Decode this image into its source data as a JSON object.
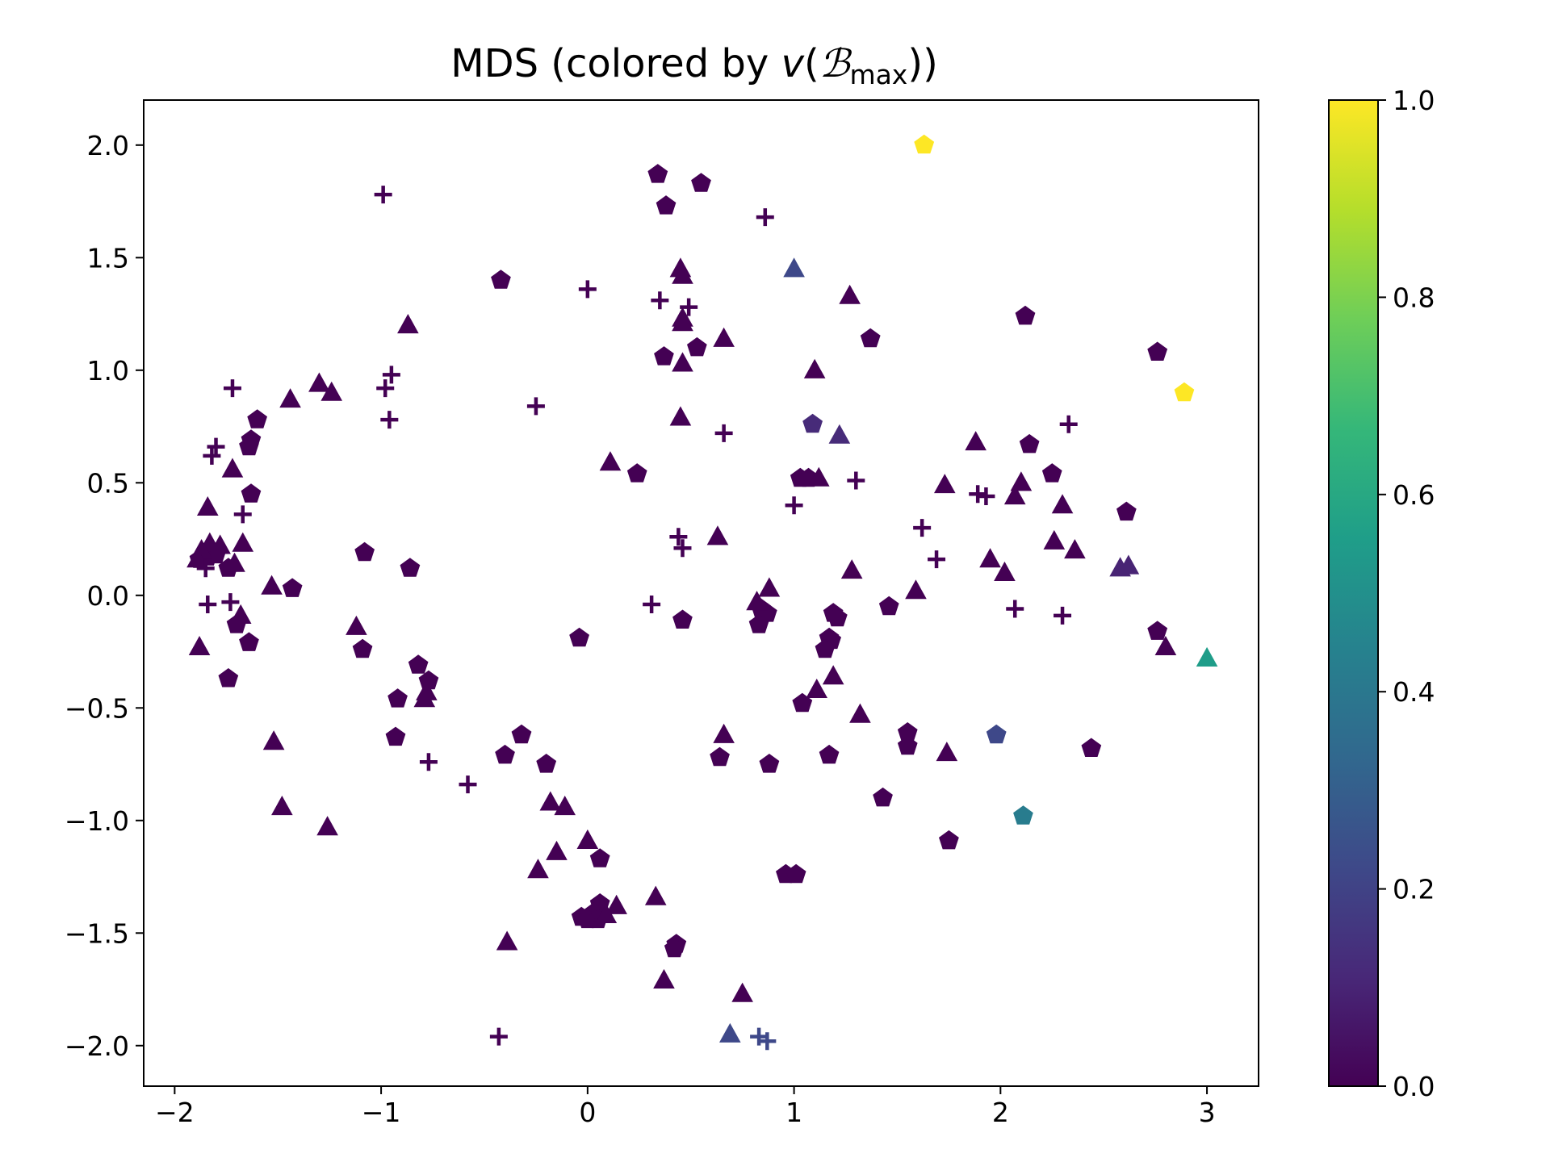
{
  "chart_data": {
    "type": "scatter",
    "title": {
      "prefix": "MDS (colored by ",
      "v": "v",
      "open": "(",
      "B": "ℬ",
      "sub": "max",
      "close": "))"
    },
    "xlabel": "",
    "ylabel": "",
    "xlim": [
      -2.15,
      3.25
    ],
    "ylim": [
      -2.18,
      2.2
    ],
    "x_ticks": [
      -2,
      -1,
      0,
      1,
      2,
      3
    ],
    "x_tick_labels": [
      "−2",
      "−1",
      "0",
      "1",
      "2",
      "3"
    ],
    "y_ticks": [
      -2.0,
      -1.5,
      -1.0,
      -0.5,
      0.0,
      0.5,
      1.0,
      1.5,
      2.0
    ],
    "y_tick_labels": [
      "−2.0",
      "−1.5",
      "−1.0",
      "−0.5",
      "0.0",
      "0.5",
      "1.0",
      "1.5",
      "2.0"
    ],
    "grid": false,
    "colorbar": {
      "colormap": "viridis",
      "range": [
        0.0,
        1.0
      ],
      "ticks": [
        0.0,
        0.2,
        0.4,
        0.6,
        0.8,
        1.0
      ],
      "tick_labels": [
        "0.0",
        "0.2",
        "0.4",
        "0.6",
        "0.8",
        "1.0"
      ],
      "stops": [
        "#440154",
        "#482878",
        "#3e4989",
        "#31688e",
        "#26828e",
        "#1f9e89",
        "#35b779",
        "#6ece58",
        "#b5de2b",
        "#fde725"
      ]
    },
    "points": [
      {
        "x": 1.63,
        "y": 2.0,
        "marker": "pentagon",
        "c": 1.0
      },
      {
        "x": 0.34,
        "y": 1.87,
        "marker": "pentagon",
        "c": 0.0
      },
      {
        "x": 0.55,
        "y": 1.83,
        "marker": "pentagon",
        "c": 0.0
      },
      {
        "x": 0.38,
        "y": 1.73,
        "marker": "pentagon",
        "c": 0.0
      },
      {
        "x": -0.42,
        "y": 1.4,
        "marker": "pentagon",
        "c": 0.0
      },
      {
        "x": 2.12,
        "y": 1.24,
        "marker": "pentagon",
        "c": 0.0
      },
      {
        "x": 1.37,
        "y": 1.14,
        "marker": "pentagon",
        "c": 0.0
      },
      {
        "x": 0.53,
        "y": 1.1,
        "marker": "pentagon",
        "c": 0.0
      },
      {
        "x": 0.37,
        "y": 1.06,
        "marker": "pentagon",
        "c": 0.0
      },
      {
        "x": 2.76,
        "y": 1.08,
        "marker": "pentagon",
        "c": 0.0
      },
      {
        "x": 2.89,
        "y": 0.9,
        "marker": "pentagon",
        "c": 1.0
      },
      {
        "x": -1.6,
        "y": 0.78,
        "marker": "pentagon",
        "c": 0.0
      },
      {
        "x": 1.09,
        "y": 0.76,
        "marker": "pentagon",
        "c": 0.12
      },
      {
        "x": -1.63,
        "y": 0.69,
        "marker": "pentagon",
        "c": 0.0
      },
      {
        "x": -1.64,
        "y": 0.66,
        "marker": "pentagon",
        "c": 0.0
      },
      {
        "x": 2.14,
        "y": 0.67,
        "marker": "pentagon",
        "c": 0.0
      },
      {
        "x": 0.24,
        "y": 0.54,
        "marker": "pentagon",
        "c": 0.0
      },
      {
        "x": 2.25,
        "y": 0.54,
        "marker": "pentagon",
        "c": 0.0
      },
      {
        "x": 1.03,
        "y": 0.52,
        "marker": "pentagon",
        "c": 0.0
      },
      {
        "x": 1.07,
        "y": 0.52,
        "marker": "pentagon",
        "c": 0.0
      },
      {
        "x": -1.63,
        "y": 0.45,
        "marker": "pentagon",
        "c": 0.0
      },
      {
        "x": 2.61,
        "y": 0.37,
        "marker": "pentagon",
        "c": 0.0
      },
      {
        "x": -1.08,
        "y": 0.19,
        "marker": "pentagon",
        "c": 0.0
      },
      {
        "x": -1.88,
        "y": 0.16,
        "marker": "pentagon",
        "c": 0.0
      },
      {
        "x": -1.84,
        "y": 0.17,
        "marker": "pentagon",
        "c": 0.0
      },
      {
        "x": -1.8,
        "y": 0.18,
        "marker": "pentagon",
        "c": 0.0
      },
      {
        "x": -0.86,
        "y": 0.12,
        "marker": "pentagon",
        "c": 0.0
      },
      {
        "x": -1.74,
        "y": 0.12,
        "marker": "pentagon",
        "c": 0.0
      },
      {
        "x": -1.43,
        "y": 0.03,
        "marker": "pentagon",
        "c": 0.0
      },
      {
        "x": 0.84,
        "y": -0.06,
        "marker": "pentagon",
        "c": 0.0
      },
      {
        "x": 0.87,
        "y": -0.08,
        "marker": "pentagon",
        "c": 0.0
      },
      {
        "x": 1.46,
        "y": -0.05,
        "marker": "pentagon",
        "c": 0.0
      },
      {
        "x": 1.19,
        "y": -0.08,
        "marker": "pentagon",
        "c": 0.0
      },
      {
        "x": 1.21,
        "y": -0.1,
        "marker": "pentagon",
        "c": 0.0
      },
      {
        "x": 0.46,
        "y": -0.11,
        "marker": "pentagon",
        "c": 0.0
      },
      {
        "x": 0.83,
        "y": -0.13,
        "marker": "pentagon",
        "c": 0.0
      },
      {
        "x": -1.7,
        "y": -0.13,
        "marker": "pentagon",
        "c": 0.0
      },
      {
        "x": 2.76,
        "y": -0.16,
        "marker": "pentagon",
        "c": 0.0
      },
      {
        "x": -0.04,
        "y": -0.19,
        "marker": "pentagon",
        "c": 0.0
      },
      {
        "x": -1.64,
        "y": -0.21,
        "marker": "pentagon",
        "c": 0.0
      },
      {
        "x": 1.17,
        "y": -0.19,
        "marker": "pentagon",
        "c": 0.0
      },
      {
        "x": 1.18,
        "y": -0.2,
        "marker": "pentagon",
        "c": 0.0
      },
      {
        "x": 1.15,
        "y": -0.24,
        "marker": "pentagon",
        "c": 0.0
      },
      {
        "x": -1.09,
        "y": -0.24,
        "marker": "pentagon",
        "c": 0.0
      },
      {
        "x": -0.82,
        "y": -0.31,
        "marker": "pentagon",
        "c": 0.0
      },
      {
        "x": -1.74,
        "y": -0.37,
        "marker": "pentagon",
        "c": 0.0
      },
      {
        "x": -0.77,
        "y": -0.38,
        "marker": "pentagon",
        "c": 0.0
      },
      {
        "x": -0.92,
        "y": -0.46,
        "marker": "pentagon",
        "c": 0.0
      },
      {
        "x": 1.04,
        "y": -0.48,
        "marker": "pentagon",
        "c": 0.0
      },
      {
        "x": 1.55,
        "y": -0.61,
        "marker": "pentagon",
        "c": 0.0
      },
      {
        "x": -0.32,
        "y": -0.62,
        "marker": "pentagon",
        "c": 0.0
      },
      {
        "x": -0.93,
        "y": -0.63,
        "marker": "pentagon",
        "c": 0.0
      },
      {
        "x": 1.98,
        "y": -0.62,
        "marker": "pentagon",
        "c": 0.22
      },
      {
        "x": 1.55,
        "y": -0.67,
        "marker": "pentagon",
        "c": 0.0
      },
      {
        "x": 2.44,
        "y": -0.68,
        "marker": "pentagon",
        "c": 0.0
      },
      {
        "x": -0.4,
        "y": -0.71,
        "marker": "pentagon",
        "c": 0.0
      },
      {
        "x": 1.17,
        "y": -0.71,
        "marker": "pentagon",
        "c": 0.0
      },
      {
        "x": 0.64,
        "y": -0.72,
        "marker": "pentagon",
        "c": 0.0
      },
      {
        "x": 0.88,
        "y": -0.75,
        "marker": "pentagon",
        "c": 0.0
      },
      {
        "x": -0.2,
        "y": -0.75,
        "marker": "pentagon",
        "c": 0.0
      },
      {
        "x": 1.43,
        "y": -0.9,
        "marker": "pentagon",
        "c": 0.0
      },
      {
        "x": 2.11,
        "y": -0.98,
        "marker": "pentagon",
        "c": 0.42
      },
      {
        "x": 1.75,
        "y": -1.09,
        "marker": "pentagon",
        "c": 0.0
      },
      {
        "x": 0.06,
        "y": -1.17,
        "marker": "pentagon",
        "c": 0.0
      },
      {
        "x": 0.96,
        "y": -1.24,
        "marker": "pentagon",
        "c": 0.0
      },
      {
        "x": 1.01,
        "y": -1.24,
        "marker": "pentagon",
        "c": 0.0
      },
      {
        "x": 0.06,
        "y": -1.37,
        "marker": "pentagon",
        "c": 0.0
      },
      {
        "x": 0.03,
        "y": -1.41,
        "marker": "pentagon",
        "c": 0.0
      },
      {
        "x": -0.03,
        "y": -1.43,
        "marker": "pentagon",
        "c": 0.0
      },
      {
        "x": 0.0,
        "y": -1.44,
        "marker": "pentagon",
        "c": 0.0
      },
      {
        "x": 0.05,
        "y": -1.44,
        "marker": "pentagon",
        "c": 0.0
      },
      {
        "x": 0.43,
        "y": -1.55,
        "marker": "pentagon",
        "c": 0.0
      },
      {
        "x": 0.42,
        "y": -1.57,
        "marker": "pentagon",
        "c": 0.0
      },
      {
        "x": 0.45,
        "y": 1.45,
        "marker": "triangle",
        "c": 0.0
      },
      {
        "x": 0.46,
        "y": 1.42,
        "marker": "triangle",
        "c": 0.0
      },
      {
        "x": 1.0,
        "y": 1.45,
        "marker": "triangle",
        "c": 0.22
      },
      {
        "x": 1.27,
        "y": 1.33,
        "marker": "triangle",
        "c": 0.0
      },
      {
        "x": 0.46,
        "y": 1.23,
        "marker": "triangle",
        "c": 0.0
      },
      {
        "x": 0.46,
        "y": 1.21,
        "marker": "triangle",
        "c": 0.0
      },
      {
        "x": -0.87,
        "y": 1.2,
        "marker": "triangle",
        "c": 0.0
      },
      {
        "x": 0.66,
        "y": 1.14,
        "marker": "triangle",
        "c": 0.0
      },
      {
        "x": 0.46,
        "y": 1.03,
        "marker": "triangle",
        "c": 0.0
      },
      {
        "x": 1.1,
        "y": 1.0,
        "marker": "triangle",
        "c": 0.0
      },
      {
        "x": -1.3,
        "y": 0.94,
        "marker": "triangle",
        "c": 0.0
      },
      {
        "x": -1.24,
        "y": 0.9,
        "marker": "triangle",
        "c": 0.0
      },
      {
        "x": -1.44,
        "y": 0.87,
        "marker": "triangle",
        "c": 0.0
      },
      {
        "x": 0.45,
        "y": 0.79,
        "marker": "triangle",
        "c": 0.0
      },
      {
        "x": 1.22,
        "y": 0.71,
        "marker": "triangle",
        "c": 0.12
      },
      {
        "x": 1.88,
        "y": 0.68,
        "marker": "triangle",
        "c": 0.0
      },
      {
        "x": 0.11,
        "y": 0.59,
        "marker": "triangle",
        "c": 0.0
      },
      {
        "x": -1.72,
        "y": 0.56,
        "marker": "triangle",
        "c": 0.0
      },
      {
        "x": 1.12,
        "y": 0.52,
        "marker": "triangle",
        "c": 0.0
      },
      {
        "x": 1.73,
        "y": 0.49,
        "marker": "triangle",
        "c": 0.0
      },
      {
        "x": 2.1,
        "y": 0.5,
        "marker": "triangle",
        "c": 0.0
      },
      {
        "x": 2.07,
        "y": 0.44,
        "marker": "triangle",
        "c": 0.0
      },
      {
        "x": 2.3,
        "y": 0.4,
        "marker": "triangle",
        "c": 0.0
      },
      {
        "x": -1.84,
        "y": 0.39,
        "marker": "triangle",
        "c": 0.0
      },
      {
        "x": 0.63,
        "y": 0.26,
        "marker": "triangle",
        "c": 0.0
      },
      {
        "x": 2.26,
        "y": 0.24,
        "marker": "triangle",
        "c": 0.0
      },
      {
        "x": -1.83,
        "y": 0.23,
        "marker": "triangle",
        "c": 0.0
      },
      {
        "x": -1.67,
        "y": 0.23,
        "marker": "triangle",
        "c": 0.0
      },
      {
        "x": -1.78,
        "y": 0.22,
        "marker": "triangle",
        "c": 0.0
      },
      {
        "x": -1.87,
        "y": 0.2,
        "marker": "triangle",
        "c": 0.0
      },
      {
        "x": 2.36,
        "y": 0.2,
        "marker": "triangle",
        "c": 0.0
      },
      {
        "x": -1.89,
        "y": 0.16,
        "marker": "triangle",
        "c": 0.0
      },
      {
        "x": 1.95,
        "y": 0.16,
        "marker": "triangle",
        "c": 0.0
      },
      {
        "x": -1.71,
        "y": 0.14,
        "marker": "triangle",
        "c": 0.0
      },
      {
        "x": 2.58,
        "y": 0.12,
        "marker": "triangle",
        "c": 0.1
      },
      {
        "x": 2.62,
        "y": 0.13,
        "marker": "triangle",
        "c": 0.1
      },
      {
        "x": 1.28,
        "y": 0.11,
        "marker": "triangle",
        "c": 0.0
      },
      {
        "x": 2.02,
        "y": 0.1,
        "marker": "triangle",
        "c": 0.0
      },
      {
        "x": -1.53,
        "y": 0.04,
        "marker": "triangle",
        "c": 0.0
      },
      {
        "x": 0.88,
        "y": 0.03,
        "marker": "triangle",
        "c": 0.0
      },
      {
        "x": 1.59,
        "y": 0.02,
        "marker": "triangle",
        "c": 0.0
      },
      {
        "x": 0.82,
        "y": -0.03,
        "marker": "triangle",
        "c": 0.0
      },
      {
        "x": -1.68,
        "y": -0.09,
        "marker": "triangle",
        "c": 0.0
      },
      {
        "x": -1.12,
        "y": -0.14,
        "marker": "triangle",
        "c": 0.0
      },
      {
        "x": -1.88,
        "y": -0.23,
        "marker": "triangle",
        "c": 0.0
      },
      {
        "x": 2.8,
        "y": -0.23,
        "marker": "triangle",
        "c": 0.0
      },
      {
        "x": 3.0,
        "y": -0.28,
        "marker": "triangle",
        "c": 0.55
      },
      {
        "x": 1.19,
        "y": -0.36,
        "marker": "triangle",
        "c": 0.0
      },
      {
        "x": -0.78,
        "y": -0.43,
        "marker": "triangle",
        "c": 0.0
      },
      {
        "x": 1.11,
        "y": -0.42,
        "marker": "triangle",
        "c": 0.0
      },
      {
        "x": -0.79,
        "y": -0.46,
        "marker": "triangle",
        "c": 0.0
      },
      {
        "x": 1.32,
        "y": -0.53,
        "marker": "triangle",
        "c": 0.0
      },
      {
        "x": 0.66,
        "y": -0.62,
        "marker": "triangle",
        "c": 0.0
      },
      {
        "x": -1.52,
        "y": -0.65,
        "marker": "triangle",
        "c": 0.0
      },
      {
        "x": 1.74,
        "y": -0.7,
        "marker": "triangle",
        "c": 0.0
      },
      {
        "x": -1.48,
        "y": -0.94,
        "marker": "triangle",
        "c": 0.0
      },
      {
        "x": -0.18,
        "y": -0.92,
        "marker": "triangle",
        "c": 0.0
      },
      {
        "x": -0.11,
        "y": -0.94,
        "marker": "triangle",
        "c": 0.0
      },
      {
        "x": -1.26,
        "y": -1.03,
        "marker": "triangle",
        "c": 0.0
      },
      {
        "x": 0.0,
        "y": -1.09,
        "marker": "triangle",
        "c": 0.0
      },
      {
        "x": -0.15,
        "y": -1.14,
        "marker": "triangle",
        "c": 0.0
      },
      {
        "x": -0.24,
        "y": -1.22,
        "marker": "triangle",
        "c": 0.0
      },
      {
        "x": 0.33,
        "y": -1.34,
        "marker": "triangle",
        "c": 0.0
      },
      {
        "x": 0.14,
        "y": -1.38,
        "marker": "triangle",
        "c": 0.0
      },
      {
        "x": 0.08,
        "y": -1.41,
        "marker": "triangle",
        "c": 0.0
      },
      {
        "x": 0.09,
        "y": -1.42,
        "marker": "triangle",
        "c": 0.0
      },
      {
        "x": -0.39,
        "y": -1.54,
        "marker": "triangle",
        "c": 0.0
      },
      {
        "x": 0.37,
        "y": -1.71,
        "marker": "triangle",
        "c": 0.0
      },
      {
        "x": 0.75,
        "y": -1.77,
        "marker": "triangle",
        "c": 0.0
      },
      {
        "x": 0.69,
        "y": -1.95,
        "marker": "triangle",
        "c": 0.22
      },
      {
        "x": -0.99,
        "y": 1.78,
        "marker": "plus",
        "c": 0.0
      },
      {
        "x": 0.86,
        "y": 1.68,
        "marker": "plus",
        "c": 0.0
      },
      {
        "x": 0.0,
        "y": 1.36,
        "marker": "plus",
        "c": 0.0
      },
      {
        "x": 0.35,
        "y": 1.31,
        "marker": "plus",
        "c": 0.0
      },
      {
        "x": 0.49,
        "y": 1.28,
        "marker": "plus",
        "c": 0.0
      },
      {
        "x": -0.95,
        "y": 0.98,
        "marker": "plus",
        "c": 0.0
      },
      {
        "x": -1.72,
        "y": 0.92,
        "marker": "plus",
        "c": 0.0
      },
      {
        "x": -0.98,
        "y": 0.92,
        "marker": "plus",
        "c": 0.0
      },
      {
        "x": -0.25,
        "y": 0.84,
        "marker": "plus",
        "c": 0.0
      },
      {
        "x": -0.96,
        "y": 0.78,
        "marker": "plus",
        "c": 0.0
      },
      {
        "x": 2.33,
        "y": 0.76,
        "marker": "plus",
        "c": 0.0
      },
      {
        "x": 0.66,
        "y": 0.72,
        "marker": "plus",
        "c": 0.0
      },
      {
        "x": -1.8,
        "y": 0.66,
        "marker": "plus",
        "c": 0.0
      },
      {
        "x": -1.82,
        "y": 0.62,
        "marker": "plus",
        "c": 0.0
      },
      {
        "x": 1.3,
        "y": 0.51,
        "marker": "plus",
        "c": 0.0
      },
      {
        "x": 1.89,
        "y": 0.45,
        "marker": "plus",
        "c": 0.0
      },
      {
        "x": 1.93,
        "y": 0.44,
        "marker": "plus",
        "c": 0.0
      },
      {
        "x": 1.0,
        "y": 0.4,
        "marker": "plus",
        "c": 0.0
      },
      {
        "x": -1.67,
        "y": 0.36,
        "marker": "plus",
        "c": 0.0
      },
      {
        "x": 1.62,
        "y": 0.3,
        "marker": "plus",
        "c": 0.0
      },
      {
        "x": 0.44,
        "y": 0.26,
        "marker": "plus",
        "c": 0.0
      },
      {
        "x": 0.46,
        "y": 0.21,
        "marker": "plus",
        "c": 0.0
      },
      {
        "x": 1.69,
        "y": 0.16,
        "marker": "plus",
        "c": 0.0
      },
      {
        "x": -1.85,
        "y": 0.12,
        "marker": "plus",
        "c": 0.0
      },
      {
        "x": -1.84,
        "y": -0.04,
        "marker": "plus",
        "c": 0.0
      },
      {
        "x": -1.73,
        "y": -0.03,
        "marker": "plus",
        "c": 0.0
      },
      {
        "x": 0.31,
        "y": -0.04,
        "marker": "plus",
        "c": 0.0
      },
      {
        "x": 2.07,
        "y": -0.06,
        "marker": "plus",
        "c": 0.0
      },
      {
        "x": 2.3,
        "y": -0.09,
        "marker": "plus",
        "c": 0.0
      },
      {
        "x": -0.77,
        "y": -0.74,
        "marker": "plus",
        "c": 0.0
      },
      {
        "x": -0.58,
        "y": -0.84,
        "marker": "plus",
        "c": 0.0
      },
      {
        "x": -0.43,
        "y": -1.96,
        "marker": "plus",
        "c": 0.0
      },
      {
        "x": 0.83,
        "y": -1.96,
        "marker": "plus",
        "c": 0.22
      },
      {
        "x": 0.87,
        "y": -1.98,
        "marker": "plus",
        "c": 0.22
      }
    ]
  }
}
